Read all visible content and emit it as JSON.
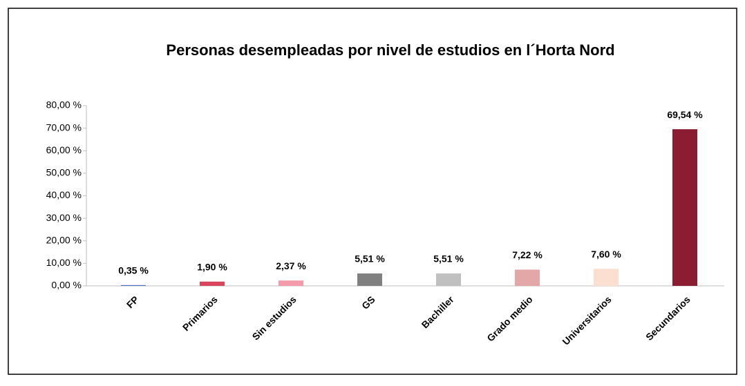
{
  "chart_data": {
    "type": "bar",
    "title": "Personas desempleadas por nivel de estudios en l´Horta Nord",
    "categories": [
      "FP",
      "Primarios",
      "Sin estudios",
      "GS",
      "Bachiller",
      "Grado medio",
      "Universitarios",
      "Secundarios"
    ],
    "values": [
      0.35,
      1.9,
      2.37,
      5.51,
      5.51,
      7.22,
      7.6,
      69.54
    ],
    "value_labels": [
      "0,35 %",
      "1,90 %",
      "2,37 %",
      "5,51 %",
      "5,51 %",
      "7,22 %",
      "7,60 %",
      "69,54 %"
    ],
    "colors": [
      "#4a72c0",
      "#d9455c",
      "#f49aaa",
      "#808080",
      "#c0c0c0",
      "#e3a7a7",
      "#fbe0d2",
      "#8b1c32"
    ],
    "ylim": [
      0,
      80
    ],
    "yticks": [
      {
        "value": 0,
        "label": "0,00 %"
      },
      {
        "value": 10,
        "label": "10,00 %"
      },
      {
        "value": 20,
        "label": "20,00 %"
      },
      {
        "value": 30,
        "label": "30,00 %"
      },
      {
        "value": 40,
        "label": "40,00 %"
      },
      {
        "value": 50,
        "label": "50,00 %"
      },
      {
        "value": 60,
        "label": "60,00 %"
      },
      {
        "value": 70,
        "label": "70,00 %"
      },
      {
        "value": 80,
        "label": "80,00 %"
      }
    ],
    "grid": false
  }
}
